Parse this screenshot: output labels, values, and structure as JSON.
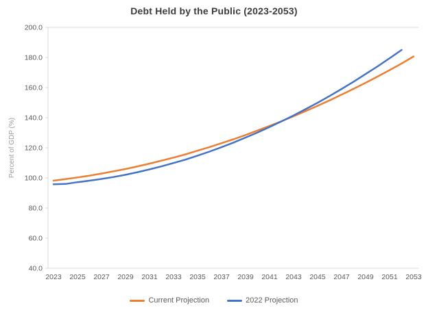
{
  "chart_data": {
    "type": "line",
    "title": "Debt Held by the Public (2023-2053)",
    "xlabel": "",
    "ylabel": "Percent of GDP (%)",
    "ylim": [
      40.0,
      200.0
    ],
    "ytick_step": 20,
    "ytick_labels": [
      "200.0",
      "180.0",
      "160.0",
      "140.0",
      "120.0",
      "100.0",
      "80.0",
      "60.0",
      "40.0"
    ],
    "xticks": [
      2023,
      2025,
      2027,
      2029,
      2031,
      2033,
      2035,
      2037,
      2039,
      2041,
      2043,
      2045,
      2047,
      2049,
      2051,
      2053
    ],
    "grid": false,
    "legend_position": "bottom",
    "colors": {
      "axis_line": "#d9d9d9",
      "tick_label": "#595959",
      "axis_title": "#9b9b9b",
      "title": "#3b3b3b",
      "current_projection": "#ed7d31",
      "projection_2022": "#4472c4"
    },
    "series": [
      {
        "name": "Current Projection",
        "color": "#ed7d31",
        "x": [
          2023,
          2024,
          2025,
          2026,
          2027,
          2028,
          2029,
          2030,
          2031,
          2032,
          2033,
          2034,
          2035,
          2036,
          2037,
          2038,
          2039,
          2040,
          2041,
          2042,
          2043,
          2044,
          2045,
          2046,
          2047,
          2048,
          2049,
          2050,
          2051,
          2052,
          2053
        ],
        "values": [
          98.2,
          99.2,
          100.3,
          101.5,
          102.9,
          104.4,
          105.9,
          107.7,
          109.5,
          111.5,
          113.5,
          115.7,
          118.1,
          120.5,
          123.1,
          125.7,
          128.5,
          131.5,
          134.5,
          137.7,
          141.0,
          144.4,
          147.9,
          151.5,
          155.3,
          159.2,
          163.2,
          167.3,
          171.6,
          176.0,
          180.7
        ]
      },
      {
        "name": "2022 Projection",
        "color": "#4472c4",
        "x": [
          2023,
          2024,
          2025,
          2026,
          2027,
          2028,
          2029,
          2030,
          2031,
          2032,
          2033,
          2034,
          2035,
          2036,
          2037,
          2038,
          2039,
          2040,
          2041,
          2042,
          2043,
          2044,
          2045,
          2046,
          2047,
          2048,
          2049,
          2050,
          2051,
          2052
        ],
        "values": [
          95.8,
          96.0,
          97.2,
          98.2,
          99.3,
          100.6,
          102.1,
          103.8,
          105.7,
          107.7,
          109.9,
          112.2,
          114.8,
          117.5,
          120.4,
          123.5,
          126.8,
          130.2,
          133.8,
          137.6,
          141.5,
          145.7,
          149.9,
          154.4,
          159.1,
          163.9,
          169.0,
          174.1,
          179.5,
          185.0
        ]
      }
    ]
  }
}
